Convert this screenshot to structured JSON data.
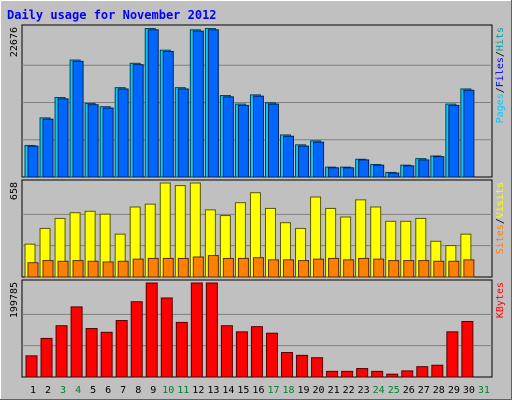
{
  "colors": {
    "background": "#c0c0c0",
    "plot_background": "#c0c0c0",
    "grid": "#808080",
    "title": "#0000ff",
    "hits": "#00ccff",
    "files": "#0066ff",
    "sites": "#ff8000",
    "visits": "#ffff00",
    "kbytes": "#ff0000",
    "hits_label": "#00a0a0",
    "files_label": "#0000ff",
    "pages_label": "#00ccff",
    "sites_label": "#ff8000",
    "visits_label": "#ffff00",
    "kbytes_label": "#ff0000",
    "weekday_label": "#000000",
    "weekend_label": "#00802b"
  },
  "chart_data": {
    "type": "bar",
    "title": "Daily usage for November 2012",
    "categories": [
      "1",
      "2",
      "3",
      "4",
      "5",
      "6",
      "7",
      "8",
      "9",
      "10",
      "11",
      "12",
      "13",
      "14",
      "15",
      "16",
      "17",
      "18",
      "19",
      "20",
      "21",
      "22",
      "23",
      "24",
      "25",
      "26",
      "27",
      "28",
      "29",
      "30",
      "31"
    ],
    "weekend_days": [
      3,
      4,
      10,
      11,
      17,
      18,
      24,
      25,
      31
    ],
    "panels": [
      {
        "id": "top",
        "max_label": "22676",
        "max_value": 22676,
        "legend": [
          {
            "text": "Pages",
            "color_key": "pages_label"
          },
          {
            "text": "/",
            "color_key": "weekday_label"
          },
          {
            "text": "Files",
            "color_key": "files_label"
          },
          {
            "text": "/",
            "color_key": "weekday_label"
          },
          {
            "text": "Hits",
            "color_key": "hits_label"
          }
        ],
        "series": [
          {
            "name": "Hits",
            "color_key": "hits",
            "values": [
              4800,
              9000,
              12100,
              17800,
              11200,
              10700,
              13600,
              17300,
              22600,
              19300,
              13600,
              22400,
              22600,
              12400,
              11100,
              12500,
              11300,
              6400,
              4900,
              5500,
              1500,
              1500,
              2700,
              1900,
              700,
              1800,
              2800,
              3200,
              11100,
              13400,
              0
            ]
          },
          {
            "name": "Files",
            "color_key": "files",
            "values": [
              4700,
              8800,
              11900,
              17600,
              11000,
              10500,
              13400,
              17100,
              22400,
              19100,
              13400,
              22200,
              22400,
              12200,
              10900,
              12300,
              11100,
              6200,
              4700,
              5300,
              1400,
              1400,
              2600,
              1800,
              600,
              1700,
              2600,
              3100,
              10900,
              13200,
              0
            ]
          }
        ]
      },
      {
        "id": "middle",
        "max_label": "658",
        "max_value": 658,
        "legend": [
          {
            "text": "Sites",
            "color_key": "sites_label"
          },
          {
            "text": "/",
            "color_key": "weekday_label"
          },
          {
            "text": "Visits",
            "color_key": "visits_label"
          }
        ],
        "series": [
          {
            "name": "Visits",
            "color_key": "visits",
            "values": [
              230,
              340,
              410,
              450,
              460,
              440,
              300,
              490,
              510,
              658,
              640,
              658,
              470,
              430,
              520,
              590,
              480,
              380,
              340,
              560,
              480,
              420,
              540,
              490,
              390,
              390,
              410,
              250,
              220,
              300,
              0
            ]
          },
          {
            "name": "Sites",
            "color_key": "sites",
            "values": [
              100,
              115,
              110,
              115,
              110,
              105,
              110,
              125,
              130,
              130,
              130,
              140,
              150,
              130,
              130,
              135,
              120,
              120,
              115,
              125,
              130,
              120,
              130,
              125,
              115,
              115,
              115,
              110,
              110,
              120,
              0
            ]
          }
        ]
      },
      {
        "id": "bottom",
        "max_label": "199785",
        "max_value": 199785,
        "legend": [
          {
            "text": "KBytes",
            "color_key": "kbytes_label"
          }
        ],
        "series": [
          {
            "name": "KBytes",
            "color_key": "kbytes",
            "values": [
              45000,
              82000,
              109000,
              149000,
              103000,
              95000,
              120000,
              160000,
              199785,
              168000,
              116000,
              199785,
              199785,
              109000,
              96000,
              107000,
              93000,
              52000,
              46000,
              41000,
              12000,
              12000,
              18000,
              12000,
              6000,
              13000,
              22000,
              25000,
              96000,
              118000,
              0
            ]
          }
        ]
      }
    ]
  }
}
